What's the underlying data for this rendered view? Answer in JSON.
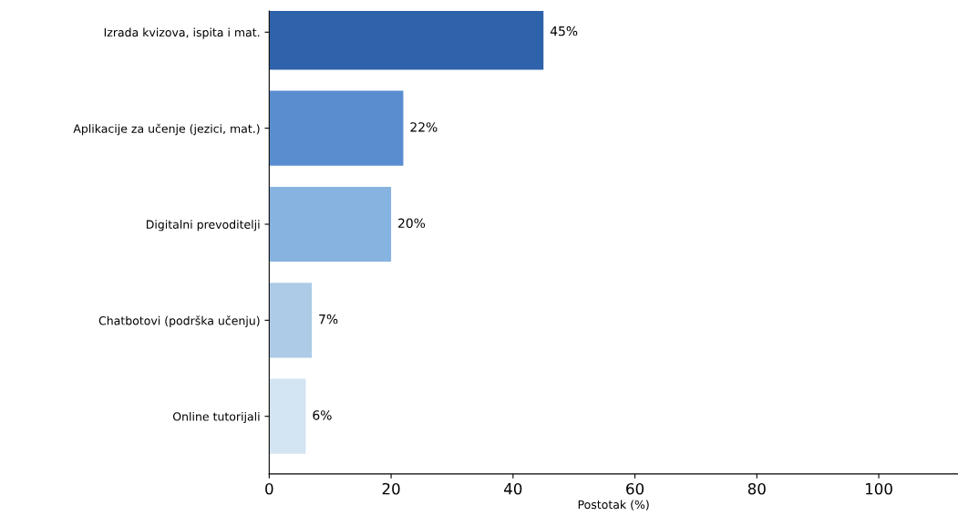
{
  "chart_data": {
    "type": "bar",
    "orientation": "horizontal",
    "xlabel": "Postotak (%)",
    "categories": [
      "Izrada kvizova, ispita i mat.",
      "Aplikacije za učenje (jezici, mat.)",
      "Digitalni prevoditelji",
      "Chatbotovi (podrška učenju)",
      "Online tutorijali"
    ],
    "values": [
      45,
      22,
      20,
      7,
      6
    ],
    "colors": [
      "#2e62aa",
      "#5a8dd0",
      "#86b3df",
      "#adcbe6",
      "#d3e4f3"
    ],
    "value_labels": [
      "45%",
      "22%",
      "20%",
      "7%",
      "6%"
    ],
    "xlim": [
      0,
      113
    ],
    "xticks": [
      0,
      20,
      40,
      60,
      80,
      100
    ],
    "grid": false,
    "legend": false
  }
}
